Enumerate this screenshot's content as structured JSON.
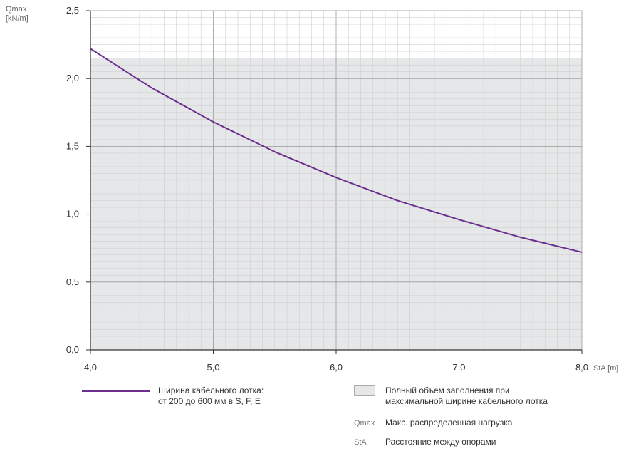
{
  "chart_data": {
    "type": "line",
    "y_axis_title_line1": "Qmax",
    "y_axis_title_line2": "[kN/m]",
    "x_axis_unit": "StA [m]",
    "xlim": [
      4.0,
      8.0
    ],
    "ylim": [
      0.0,
      2.5
    ],
    "x_ticks": [
      4.0,
      5.0,
      6.0,
      7.0,
      8.0
    ],
    "x_tick_labels": [
      "4,0",
      "5,0",
      "6,0",
      "7,0",
      "8,0"
    ],
    "y_ticks": [
      0.0,
      0.5,
      1.0,
      1.5,
      2.0,
      2.5
    ],
    "y_tick_labels": [
      "0,0",
      "0,5",
      "1,0",
      "1,5",
      "2,0",
      "2,5"
    ],
    "grid": true,
    "fill_area": {
      "y_max": 2.15,
      "color": "#e6e7e9"
    },
    "series": [
      {
        "name": "Ширина кабельного лотка: от 200 до 600 мм в S, F, E",
        "color": "#6b2d8e",
        "x": [
          4.0,
          4.5,
          5.0,
          5.5,
          6.0,
          6.5,
          7.0,
          7.5,
          8.0
        ],
        "y": [
          2.22,
          1.93,
          1.68,
          1.46,
          1.27,
          1.1,
          0.96,
          0.83,
          0.72
        ]
      }
    ]
  },
  "legend": {
    "line_label_1": "Ширина кабельного лотка:",
    "line_label_2": "от 200 до 600 мм в S, F, E",
    "fill_label_1": "Полный объем заполнения при",
    "fill_label_2": "максимальной ширине кабельного лотка",
    "qmax_abbr": "Qmax",
    "qmax_desc": "Макс. распределенная нагрузка",
    "sta_abbr": "StA",
    "sta_desc": "Расстояние между опорами"
  }
}
